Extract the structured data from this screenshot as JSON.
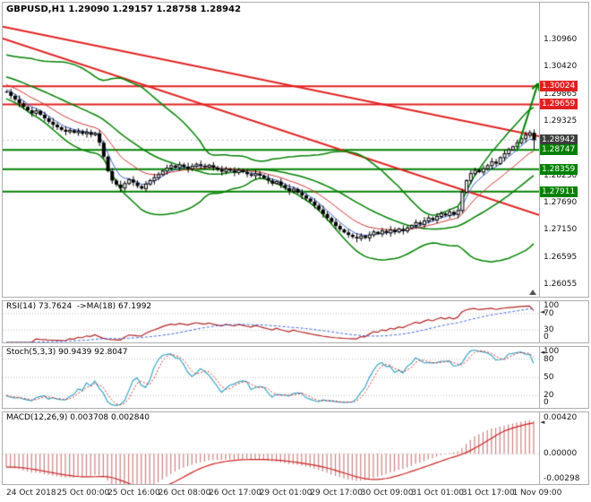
{
  "header": {
    "symbol": "GBPUSD",
    "period": "H1",
    "text": "GBPUSD,H1 1.29090 1.29157 1.28758 1.28942",
    "open": "1.29090",
    "high": "1.29157",
    "low": "1.28758",
    "close": "1.28942"
  },
  "colors": {
    "bull": "#ffffff",
    "bear": "#000000",
    "candle_outline": "#000000",
    "bollinger": "#008000",
    "ma_fast": "#3a5fcd",
    "ma_slow": "#cc3333",
    "resistance": "#e02020",
    "support": "#008000",
    "current": "#3c3c3c",
    "rsi": "#b22222",
    "rsi_ma": "#4169e1",
    "stoch_k": "#3aa6c9",
    "stoch_d": "#d23333",
    "macd_hist": "#cc8080",
    "macd_signal": "#cc2222",
    "grid_dotted": "#b8b8b8",
    "axis_text": "#111111",
    "border": "#adadad"
  },
  "chart_data": [
    {
      "id": "price",
      "type": "candlestick",
      "title": "GBPUSD,H1",
      "ylim": [
        1.258,
        1.317
      ],
      "yticks": [
        1.3096,
        1.3042,
        1.29865,
        1.29325,
        1.2878,
        1.2823,
        1.2769,
        1.2715,
        1.26595,
        1.26055
      ],
      "ytick_labels": [
        "1.30960",
        "1.30420",
        "1.29865",
        "1.29325",
        "1.28780",
        "1.28230",
        "1.27690",
        "1.27150",
        "1.26595",
        "1.26055"
      ],
      "closes": [
        1.2991,
        1.2983,
        1.2976,
        1.2968,
        1.2961,
        1.2954,
        1.2948,
        1.2953,
        1.2945,
        1.2938,
        1.2931,
        1.2925,
        1.292,
        1.2915,
        1.2911,
        1.2914,
        1.2909,
        1.2912,
        1.2907,
        1.291,
        1.2905,
        1.2908,
        1.2889,
        1.2861,
        1.2832,
        1.2813,
        1.2805,
        1.2798,
        1.2807,
        1.2815,
        1.2809,
        1.2802,
        1.2797,
        1.2806,
        1.2813,
        1.2819,
        1.2825,
        1.2832,
        1.2838,
        1.2843,
        1.2839,
        1.2845,
        1.2841,
        1.2837,
        1.2842,
        1.2846,
        1.2843,
        1.284,
        1.2844,
        1.2839,
        1.2835,
        1.2831,
        1.2836,
        1.2833,
        1.2829,
        1.2834,
        1.283,
        1.2826,
        1.2823,
        1.2827,
        1.2823,
        1.2818,
        1.2813,
        1.2807,
        1.2811,
        1.2804,
        1.2798,
        1.2792,
        1.2796,
        1.2789,
        1.2783,
        1.2777,
        1.2771,
        1.2763,
        1.2755,
        1.2746,
        1.2738,
        1.273,
        1.2722,
        1.2715,
        1.2709,
        1.2704,
        1.27,
        1.2697,
        1.2702,
        1.2698,
        1.2704,
        1.271,
        1.2706,
        1.2712,
        1.2708,
        1.2714,
        1.271,
        1.2716,
        1.2712,
        1.2718,
        1.2723,
        1.2729,
        1.2725,
        1.2732,
        1.2738,
        1.2734,
        1.2741,
        1.2747,
        1.2743,
        1.275,
        1.2745,
        1.2753,
        1.279,
        1.2813,
        1.2827,
        1.2834,
        1.283,
        1.2837,
        1.2843,
        1.2851,
        1.2847,
        1.2859,
        1.2867,
        1.2875,
        1.2881,
        1.2889,
        1.2897,
        1.2904,
        1.2909,
        1.28942
      ],
      "last_candle": {
        "open": 1.2909,
        "high": 1.29157,
        "low": 1.28758,
        "close": 1.28942
      },
      "current_price": 1.28942,
      "levels": [
        {
          "price": 1.30024,
          "kind": "resistance"
        },
        {
          "price": 1.29659,
          "kind": "resistance"
        },
        {
          "price": 1.28747,
          "kind": "support"
        },
        {
          "price": 1.28359,
          "kind": "support"
        },
        {
          "price": 1.27911,
          "kind": "support"
        }
      ],
      "tags": [
        {
          "label": "1.30024",
          "price": 1.30024,
          "kind": "resistance"
        },
        {
          "label": "1.29659",
          "price": 1.29659,
          "kind": "resistance"
        },
        {
          "label": "1.28942",
          "price": 1.28942,
          "kind": "current"
        },
        {
          "label": "1.28747",
          "price": 1.28747,
          "kind": "support"
        },
        {
          "label": "1.28359",
          "price": 1.28359,
          "kind": "support"
        },
        {
          "label": "1.27911",
          "price": 1.27911,
          "kind": "support"
        }
      ],
      "trendlines": [
        {
          "t1": 0,
          "p1": 1.3122,
          "t2": 1,
          "p2": 1.2902
        },
        {
          "t1": 0,
          "p1": 1.3098,
          "t2": 1,
          "p2": 1.2744
        }
      ],
      "arrow": {
        "t1": 0.958,
        "p1": 1.2872,
        "t2": 0.998,
        "p2": 1.3008
      },
      "overlays": {
        "bollinger_period": 26,
        "bollinger_dev": 2.3,
        "ma_fast_period": 5,
        "ma_slow_period": 13
      }
    },
    {
      "id": "rsi",
      "type": "line",
      "label": "RSI(14) 73.7624  ->MA(18) 67.1992",
      "period": 14,
      "ma_period": 18,
      "current": 73.7624,
      "ma_current": 67.1992,
      "ylim": [
        0,
        100
      ],
      "yticks": [
        100,
        70,
        30,
        0
      ],
      "ytick_labels": [
        "100",
        "70",
        "30",
        "0"
      ],
      "levels": [
        70,
        30
      ]
    },
    {
      "id": "stoch",
      "type": "line",
      "label": "Stoch(5,3,3) 90.9439 92.8047",
      "k_period": 5,
      "d_period": 3,
      "slowing": 3,
      "current_k": 90.9439,
      "current_d": 92.8047,
      "ylim": [
        0,
        100
      ],
      "yticks": [
        100,
        80,
        50,
        20,
        0
      ],
      "ytick_labels": [
        "100",
        "80",
        "50",
        "20",
        "0"
      ],
      "levels": [
        80,
        50,
        20
      ]
    },
    {
      "id": "macd",
      "type": "bar",
      "label": "MACD(12,26,9) 0.003708 0.002840",
      "fast": 12,
      "slow": 26,
      "signal": 9,
      "current_macd": 0.003708,
      "current_signal": 0.00284,
      "ylim": [
        -0.0035,
        0.0048
      ],
      "yticks": [
        0.0042,
        0,
        -0.00298
      ],
      "ytick_labels": [
        "0.00420",
        "0.00000",
        "-0.00298"
      ],
      "levels": [
        0
      ]
    }
  ],
  "time_axis": {
    "labels": [
      {
        "text": "24 Oct 2018",
        "index": 0
      },
      {
        "text": "25 Oct 00:00",
        "index": 12
      },
      {
        "text": "25 Oct 16:00",
        "index": 24
      },
      {
        "text": "26 Oct 08:00",
        "index": 36
      },
      {
        "text": "26 Oct 17:00",
        "index": 48
      },
      {
        "text": "29 Oct 01:00",
        "index": 60
      },
      {
        "text": "29 Oct 17:00",
        "index": 72
      },
      {
        "text": "30 Oct 09:00",
        "index": 84
      },
      {
        "text": "31 Oct 01:00",
        "index": 96
      },
      {
        "text": "31 Oct 17:00",
        "index": 108
      },
      {
        "text": "1 Nov 09:00",
        "index": 120
      }
    ]
  }
}
